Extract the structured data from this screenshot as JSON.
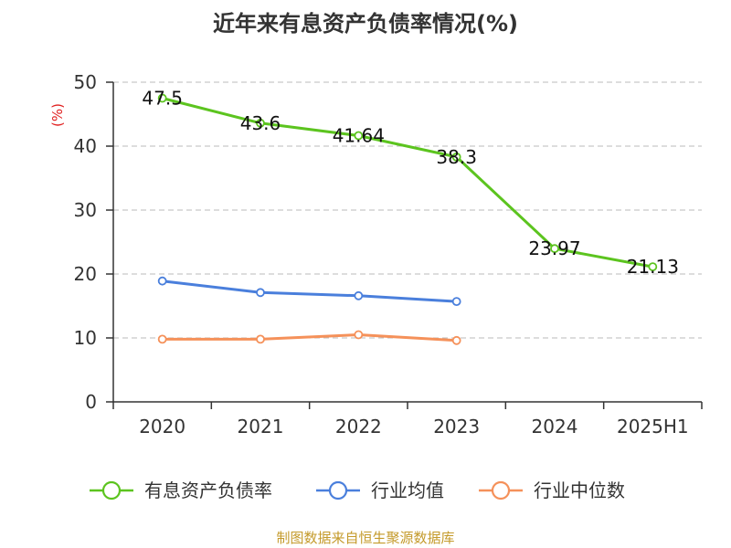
{
  "chart_data": {
    "type": "line",
    "title": "近年来有息资产负债率情况(%)",
    "ylabel": "(%)",
    "categories": [
      "2020",
      "2021",
      "2022",
      "2023",
      "2024",
      "2025H1"
    ],
    "ylim": [
      0,
      50
    ],
    "yticks": [
      "0",
      "10",
      "20",
      "30",
      "40",
      "50"
    ],
    "grid": true,
    "legend_position": "bottom",
    "series": [
      {
        "name": "有息资产负债率",
        "color": "#5cc41f",
        "values": [
          47.5,
          43.6,
          41.64,
          38.3,
          23.97,
          21.13
        ],
        "labels": [
          "47.5",
          "43.6",
          "41.64",
          "38.3",
          "23.97",
          "21.13"
        ]
      },
      {
        "name": "行业均值",
        "color": "#4a7fdc",
        "values": [
          18.9,
          17.1,
          16.6,
          15.7,
          null,
          null
        ]
      },
      {
        "name": "行业中位数",
        "color": "#f5915a",
        "values": [
          9.8,
          9.8,
          10.5,
          9.6,
          null,
          null
        ]
      }
    ]
  },
  "source_text": "制图数据来自恒生聚源数据库",
  "colors": {
    "title": "#333333",
    "ylabel": "#e02020",
    "source": "#c49a2a",
    "grid": "#bbbbbb",
    "axis": "#333333"
  }
}
